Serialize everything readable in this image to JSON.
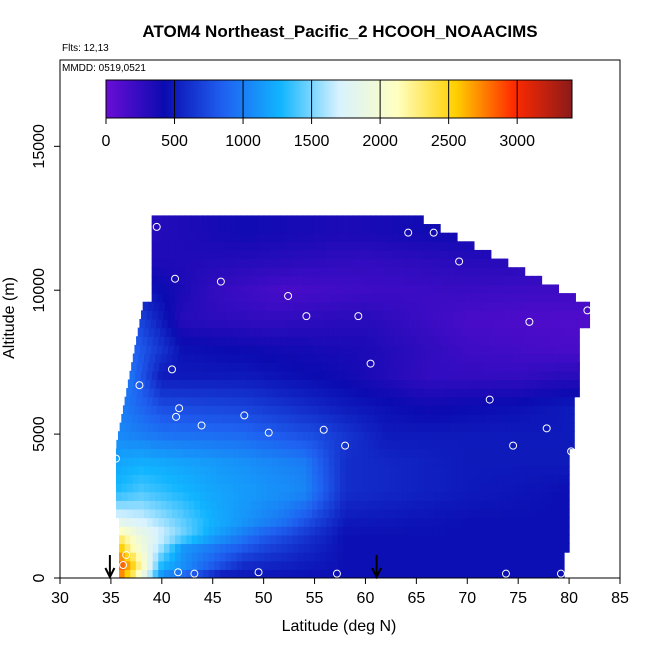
{
  "chart_data": {
    "type": "heatmap",
    "title": "ATOM4 Northeast_Pacific_2 HCOOH_NOAACIMS",
    "flights_label": "Flts: 12,13",
    "date_label": "MMDD: 0519,0521",
    "xlabel": "Latitude (deg N)",
    "ylabel": "Altitude (m)",
    "xlim": [
      30,
      85
    ],
    "ylim": [
      0,
      18000
    ],
    "x_ticks": [
      30,
      35,
      40,
      45,
      50,
      55,
      60,
      65,
      70,
      75,
      80,
      85
    ],
    "y_ticks": [
      0,
      5000,
      10000,
      15000
    ],
    "colorbar": {
      "range": [
        0,
        3400
      ],
      "ticks": [
        0,
        500,
        1000,
        1500,
        2000,
        2500,
        3000
      ],
      "colors": [
        "#6a0dd6",
        "#0b0bb0",
        "#1f5ff0",
        "#11b5ff",
        "#d8f2ff",
        "#ffffc0",
        "#ffd000",
        "#ff2a00",
        "#8b1a1a"
      ]
    },
    "field_rows": [
      {
        "alt": 12000,
        "points": [
          [
            38,
            300
          ],
          [
            48,
            400
          ],
          [
            58,
            350
          ],
          [
            66,
            400
          ]
        ]
      },
      {
        "alt": 11000,
        "points": [
          [
            38,
            350
          ],
          [
            50,
            300
          ],
          [
            60,
            250
          ],
          [
            70,
            300
          ]
        ]
      },
      {
        "alt": 10000,
        "points": [
          [
            38,
            500
          ],
          [
            45,
            250
          ],
          [
            52,
            150
          ],
          [
            60,
            200
          ],
          [
            70,
            220
          ],
          [
            76,
            200
          ]
        ]
      },
      {
        "alt": 9000,
        "points": [
          [
            37,
            800
          ],
          [
            42,
            300
          ],
          [
            50,
            250
          ],
          [
            60,
            300
          ],
          [
            70,
            150
          ],
          [
            80,
            120
          ]
        ]
      },
      {
        "alt": 8000,
        "points": [
          [
            37,
            900
          ],
          [
            42,
            450
          ],
          [
            50,
            400
          ],
          [
            60,
            350
          ],
          [
            70,
            200
          ],
          [
            80,
            150
          ]
        ]
      },
      {
        "alt": 7000,
        "points": [
          [
            37,
            950
          ],
          [
            40,
            500
          ],
          [
            48,
            500
          ],
          [
            58,
            400
          ],
          [
            66,
            250
          ],
          [
            75,
            250
          ],
          [
            80,
            300
          ]
        ]
      },
      {
        "alt": 6000,
        "points": [
          [
            36,
            1000
          ],
          [
            40,
            750
          ],
          [
            48,
            700
          ],
          [
            58,
            500
          ],
          [
            66,
            400
          ],
          [
            75,
            450
          ],
          [
            80,
            500
          ]
        ]
      },
      {
        "alt": 5000,
        "points": [
          [
            36,
            1050
          ],
          [
            40,
            950
          ],
          [
            48,
            900
          ],
          [
            55,
            750
          ],
          [
            62,
            500
          ],
          [
            72,
            500
          ],
          [
            80,
            500
          ]
        ]
      },
      {
        "alt": 4000,
        "points": [
          [
            35.5,
            1200
          ],
          [
            38,
            1250
          ],
          [
            45,
            1150
          ],
          [
            54,
            1000
          ],
          [
            58,
            600
          ],
          [
            70,
            500
          ],
          [
            79,
            500
          ]
        ]
      },
      {
        "alt": 3000,
        "points": [
          [
            35.5,
            1300
          ],
          [
            38,
            1400
          ],
          [
            45,
            1200
          ],
          [
            54,
            1050
          ],
          [
            58,
            600
          ],
          [
            70,
            500
          ],
          [
            79,
            450
          ]
        ]
      },
      {
        "alt": 2000,
        "points": [
          [
            35.5,
            1800
          ],
          [
            38,
            1700
          ],
          [
            45,
            1250
          ],
          [
            52,
            950
          ],
          [
            58,
            500
          ],
          [
            70,
            450
          ],
          [
            79,
            450
          ]
        ]
      },
      {
        "alt": 1500,
        "points": [
          [
            35.5,
            2300
          ],
          [
            38,
            1900
          ],
          [
            45,
            1200
          ],
          [
            50,
            850
          ],
          [
            58,
            450
          ],
          [
            70,
            450
          ],
          [
            79,
            450
          ]
        ]
      },
      {
        "alt": 1000,
        "points": [
          [
            35.5,
            2800
          ],
          [
            37,
            2200
          ],
          [
            42,
            1100
          ],
          [
            50,
            700
          ],
          [
            58,
            450
          ],
          [
            70,
            450
          ],
          [
            79,
            450
          ]
        ]
      },
      {
        "alt": 500,
        "points": [
          [
            35.5,
            3000
          ],
          [
            37,
            2600
          ],
          [
            40,
            1300
          ],
          [
            48,
            600
          ],
          [
            58,
            450
          ],
          [
            70,
            450
          ],
          [
            79,
            450
          ]
        ]
      },
      {
        "alt": 100,
        "points": [
          [
            35.5,
            2900
          ],
          [
            37,
            2400
          ],
          [
            40,
            1100
          ],
          [
            46,
            500
          ],
          [
            58,
            450
          ],
          [
            70,
            450
          ],
          [
            79,
            450
          ]
        ]
      }
    ],
    "observations": [
      [
        39.5,
        12200
      ],
      [
        41.3,
        10400
      ],
      [
        45.8,
        10300
      ],
      [
        52.4,
        9800
      ],
      [
        54.2,
        9100
      ],
      [
        59.3,
        9100
      ],
      [
        64.2,
        12000
      ],
      [
        66.7,
        12000
      ],
      [
        69.2,
        11000
      ],
      [
        76.1,
        8900
      ],
      [
        81.8,
        9300
      ],
      [
        37.8,
        6700
      ],
      [
        41.0,
        7250
      ],
      [
        60.5,
        7450
      ],
      [
        41.7,
        5900
      ],
      [
        41.4,
        5600
      ],
      [
        48.1,
        5650
      ],
      [
        43.9,
        5300
      ],
      [
        50.5,
        5050
      ],
      [
        55.9,
        5150
      ],
      [
        58.0,
        4600
      ],
      [
        72.2,
        6200
      ],
      [
        74.5,
        4600
      ],
      [
        77.8,
        5200
      ],
      [
        80.2,
        4400
      ],
      [
        35.5,
        4150
      ],
      [
        36.5,
        800
      ],
      [
        36.2,
        450
      ],
      [
        41.6,
        200
      ],
      [
        43.2,
        150
      ],
      [
        49.5,
        200
      ],
      [
        57.2,
        150
      ],
      [
        73.8,
        150
      ],
      [
        79.2,
        150
      ]
    ],
    "flight_markers": [
      34.9,
      61.1
    ]
  }
}
